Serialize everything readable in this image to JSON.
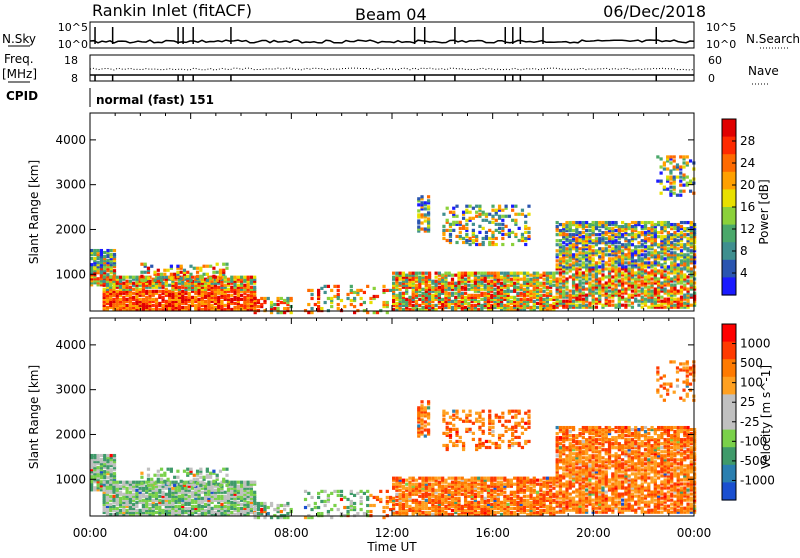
{
  "header": {
    "station": "Rankin Inlet (fitACF)",
    "beam": "Beam 04",
    "date": "06/Dec/2018"
  },
  "status_panels": {
    "nsky_label": "N.Sky",
    "nsearch_label": "N.Search",
    "nsky_ticks": [
      "10^5",
      "10^0"
    ],
    "nsearch_ticks": [
      "10^5",
      "10^0"
    ],
    "freq_label_1": "Freq.",
    "freq_label_2": "[MHz]",
    "freq_ticks": [
      "18",
      "8"
    ],
    "nave_label": "Nave",
    "nave_ticks": [
      "60",
      "0"
    ],
    "cpid_label": "CPID",
    "cpid_text": "normal (fast) 151"
  },
  "colors": {
    "power_scale": [
      "#1a1aff",
      "#2a55b0",
      "#3f8f8f",
      "#4aa86a",
      "#8bd13a",
      "#e8e000",
      "#ffa000",
      "#ff6a00",
      "#ff2a00",
      "#e00000"
    ],
    "velocity_scale": [
      "#1a4fd0",
      "#2a7fb0",
      "#3f9a6a",
      "#7ad14a",
      "#c0c0c0",
      "#c0c0c0",
      "#ffa020",
      "#ff7a00",
      "#ff3a00",
      "#ff0000"
    ]
  },
  "chart_data": [
    {
      "type": "heatmap",
      "title": "",
      "xlabel": "Time UT",
      "ylabel": "Slant Range [km]",
      "xlim": [
        0,
        24
      ],
      "ylim": [
        180,
        4600
      ],
      "xticks": [
        "00:00",
        "04:00",
        "08:00",
        "12:00",
        "16:00",
        "20:00",
        "00:00"
      ],
      "yticks": [
        1000,
        2000,
        3000,
        4000
      ],
      "colorbar": {
        "label": "Power [dB]",
        "ticks": [
          "28",
          "24",
          "20",
          "16",
          "12",
          "8",
          "4"
        ],
        "range": [
          0,
          30
        ]
      }
    },
    {
      "type": "heatmap",
      "title": "",
      "xlabel": "Time UT",
      "ylabel": "Slant Range [km]",
      "xlim": [
        0,
        24
      ],
      "ylim": [
        180,
        4600
      ],
      "xticks": [
        "00:00",
        "04:00",
        "08:00",
        "12:00",
        "16:00",
        "20:00",
        "00:00"
      ],
      "yticks": [
        1000,
        2000,
        3000,
        4000
      ],
      "colorbar": {
        "label": "Velocity [m s^-1]",
        "ticks": [
          "1000",
          "500",
          "100",
          "25",
          "-25",
          "-100",
          "-500",
          "-1000"
        ],
        "range": [
          -1000,
          1000
        ]
      }
    }
  ]
}
